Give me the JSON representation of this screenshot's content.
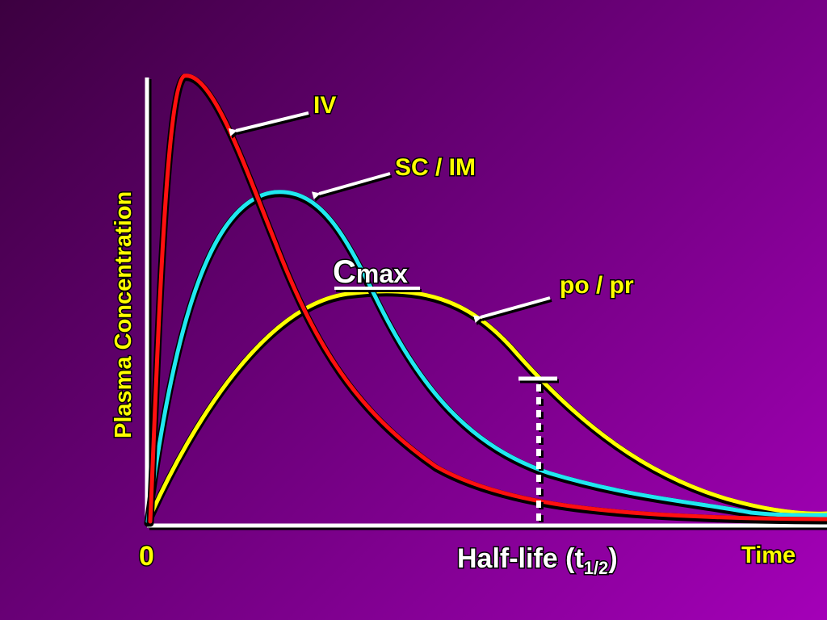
{
  "chart_data": {
    "type": "line",
    "ylabel": "Plasma Concentration",
    "xlabel": "Time",
    "origin_label": "0",
    "half_life": {
      "label_main": "Half-life (t",
      "label_sub": "1/2",
      "label_close": ")"
    },
    "cmax_label": {
      "c": "C",
      "rest": "max"
    },
    "series": [
      {
        "name": "IV",
        "color": "#ff1010"
      },
      {
        "name": "SC / IM",
        "color": "#20e8f0"
      },
      {
        "name": "po / pr",
        "color": "#ffff00"
      }
    ],
    "grid": false,
    "legend": "none"
  },
  "colors": {
    "label_text": "#ffff00",
    "axis": "#ffffff",
    "background_dark": "#3c0040",
    "background_light": "#a400b8"
  }
}
